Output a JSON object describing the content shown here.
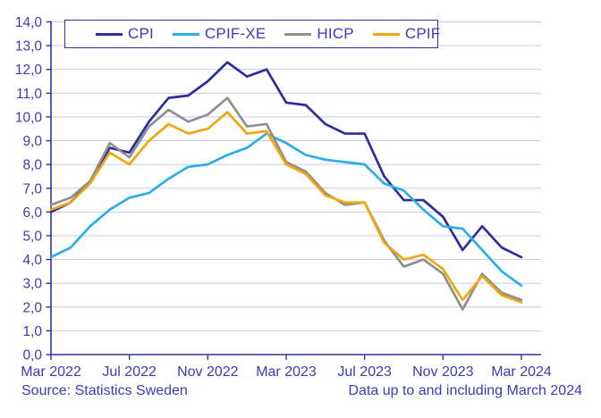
{
  "chart_data": {
    "type": "line",
    "title": "",
    "x_labels": [
      "Mar 2022",
      "Jul 2022",
      "Nov 2022",
      "Mar 2023",
      "Jul 2023",
      "Nov 2023",
      "Mar 2024"
    ],
    "x_tick_every_n_points": 4,
    "n_points": 25,
    "ylim": [
      0,
      14
    ],
    "y_tick_step": 1,
    "y_tick_labels": [
      "0,0",
      "1,0",
      "2,0",
      "3,0",
      "4,0",
      "5,0",
      "6,0",
      "7,0",
      "8,0",
      "9,0",
      "10,0",
      "11,0",
      "12,0",
      "13,0",
      "14,0"
    ],
    "grid": true,
    "legend_position": "top",
    "series": [
      {
        "name": "CPI",
        "color": "#2d2d9f",
        "values": [
          6.0,
          6.4,
          7.3,
          8.7,
          8.5,
          9.8,
          10.8,
          10.9,
          11.5,
          12.3,
          11.7,
          12.0,
          10.6,
          10.5,
          9.7,
          9.3,
          9.3,
          7.5,
          6.5,
          6.5,
          5.8,
          4.4,
          5.4,
          4.5,
          4.1
        ]
      },
      {
        "name": "CPIF-XE",
        "color": "#2aaee5",
        "values": [
          4.1,
          4.5,
          5.4,
          6.1,
          6.6,
          6.8,
          7.4,
          7.9,
          8.0,
          8.4,
          8.7,
          9.3,
          8.9,
          8.4,
          8.2,
          8.1,
          8.0,
          7.2,
          6.9,
          6.1,
          5.4,
          5.3,
          4.4,
          3.5,
          2.9
        ]
      },
      {
        "name": "HICP",
        "color": "#8f8f8f",
        "values": [
          6.3,
          6.6,
          7.3,
          8.9,
          8.3,
          9.6,
          10.3,
          9.8,
          10.1,
          10.8,
          9.6,
          9.7,
          8.1,
          7.7,
          6.8,
          6.3,
          6.4,
          4.8,
          3.7,
          4.0,
          3.4,
          1.9,
          3.4,
          2.6,
          2.3
        ]
      },
      {
        "name": "CPIF",
        "color": "#f2a50c",
        "values": [
          6.1,
          6.4,
          7.2,
          8.5,
          8.0,
          9.0,
          9.7,
          9.3,
          9.5,
          10.2,
          9.3,
          9.4,
          8.0,
          7.6,
          6.7,
          6.4,
          6.4,
          4.7,
          4.0,
          4.2,
          3.6,
          2.3,
          3.3,
          2.5,
          2.2
        ]
      }
    ]
  },
  "footer": {
    "source": "Source: Statistics Sweden",
    "note": "Data up to and including March 2024"
  },
  "style": {
    "text_color": "#3b3bb8",
    "axis_color": "#32329f",
    "grid_color": "#c9c9ec",
    "background": "#ffffff"
  }
}
